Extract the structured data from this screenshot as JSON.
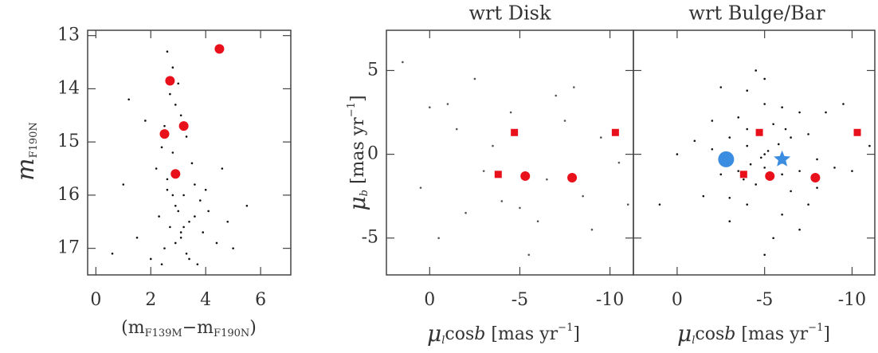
{
  "chart_data": [
    {
      "type": "scatter",
      "ylabel": [
        "m",
        "F190N"
      ],
      "xlabel": [
        "(m",
        "F139M",
        "−m",
        "F190N",
        ")"
      ],
      "xlim": [
        -0.3,
        7.1
      ],
      "ylim": [
        17.5,
        12.9
      ],
      "xticks": [
        0,
        2,
        4,
        6
      ],
      "yticks": [
        13,
        14,
        15,
        16,
        17
      ],
      "series": [
        {
          "color": "#111111",
          "marker": "dot",
          "x": [
            2.6,
            2.8,
            3.0,
            2.7,
            2.9,
            3.1,
            2.5,
            3.3,
            2.4,
            2.8,
            3.5,
            2.2,
            3.0,
            3.6,
            2.6,
            3.2,
            3.8,
            2.9,
            4.1,
            2.3,
            3.4,
            2.7,
            3.9,
            3.1,
            4.4,
            2.5,
            3.3,
            2.0,
            3.7,
            4.8,
            1.5,
            1.0,
            5.5,
            0.6,
            2.8,
            3.0,
            3.2,
            2.9,
            3.4,
            3.6,
            2.6,
            4.0,
            1.8,
            4.6,
            3.1,
            2.4,
            5.0,
            1.2
          ],
          "y": [
            13.3,
            13.6,
            13.9,
            14.1,
            14.3,
            14.5,
            14.7,
            14.9,
            15.1,
            15.2,
            15.4,
            15.5,
            15.6,
            15.8,
            15.9,
            16.0,
            16.1,
            16.2,
            16.3,
            16.4,
            16.5,
            16.6,
            16.7,
            16.8,
            16.9,
            17.0,
            17.1,
            17.2,
            17.3,
            16.5,
            16.8,
            15.8,
            16.2,
            17.1,
            16.0,
            16.3,
            16.6,
            16.9,
            17.2,
            16.4,
            15.7,
            15.9,
            14.6,
            15.5,
            16.7,
            17.3,
            17.0,
            14.2
          ]
        },
        {
          "color": "#e8101a",
          "marker": "circle",
          "x": [
            4.5,
            2.7,
            3.2,
            2.5,
            2.9
          ],
          "y": [
            13.25,
            13.85,
            14.7,
            14.85,
            15.6
          ]
        }
      ]
    },
    {
      "type": "scatter",
      "title": "wrt Disk",
      "ylabel": [
        "μ",
        "b",
        " [mas yr",
        "−1",
        "]"
      ],
      "xlabel": [
        "μ",
        "l",
        "cos",
        "b",
        " [mas yr",
        "−1",
        "]"
      ],
      "xlim": [
        2.4,
        -11.3
      ],
      "ylim": [
        -7.2,
        7.4
      ],
      "xticks": [
        0,
        -5,
        -10
      ],
      "yticks": [
        -5,
        0,
        5
      ],
      "series": [
        {
          "color": "#555555",
          "marker": "dot",
          "x": [
            1.5,
            0.5,
            -1,
            -2,
            -3,
            -4.5,
            -6,
            -7,
            -8.5,
            -9.5,
            -10.5,
            -0.5,
            -2.5,
            -5.5,
            -7.5,
            -3.5,
            -6.5,
            -1.5,
            -9,
            -4,
            -8,
            0,
            -5,
            -11
          ],
          "y": [
            5.5,
            -2,
            3,
            -3.5,
            -1,
            2.5,
            -4,
            3.5,
            -2.5,
            1,
            -0.5,
            -5,
            4.5,
            -6,
            2,
            0.5,
            -1.5,
            1.5,
            -4.5,
            -2.8,
            4,
            2.8,
            -3.2,
            -3
          ]
        },
        {
          "color": "#e8101a",
          "marker": "square",
          "x": [
            -3.8,
            -4.7,
            -10.3
          ],
          "y": [
            -1.2,
            1.3,
            1.3
          ]
        },
        {
          "color": "#e8101a",
          "marker": "circle",
          "x": [
            -5.3,
            -7.9
          ],
          "y": [
            -1.3,
            -1.4
          ]
        }
      ]
    },
    {
      "type": "scatter",
      "title": "wrt Bulge/Bar",
      "xlabel": [
        "μ",
        "l",
        "cos",
        "b",
        " [mas yr",
        "−1",
        "]"
      ],
      "xlim": [
        2.5,
        -11.3
      ],
      "ylim": [
        -7.2,
        7.4
      ],
      "xticks": [
        0,
        -5,
        -10
      ],
      "yticks": [
        -5,
        0,
        5
      ],
      "ytick_labels": false,
      "series": [
        {
          "color": "#111111",
          "marker": "dot",
          "x": [
            -5,
            -4,
            -6,
            -3,
            -7,
            -2,
            -8,
            -5.5,
            -4.5,
            -3.5,
            -6.5,
            -2.5,
            -7.5,
            -1,
            -9,
            -5,
            -4,
            -6,
            -3,
            -7,
            -5.2,
            -4.8,
            -5.8,
            -4.2,
            -6.2,
            -3.8,
            -1.5,
            -8.5,
            0,
            -10,
            -5,
            -3,
            -7,
            -4,
            -6,
            -2,
            -8,
            -5.5,
            -4.5,
            -6.5,
            -3.5,
            -9.5,
            1,
            -11,
            -5,
            -2.5,
            -7.5,
            -4,
            -6,
            -5
          ],
          "y": [
            0,
            0.5,
            -0.5,
            1,
            -1,
            0.3,
            -0.3,
            1.8,
            -1.8,
            2.2,
            -2.2,
            -1.2,
            1.2,
            0.8,
            -0.8,
            3,
            -3,
            2.8,
            -2.6,
            2.5,
            0.2,
            -0.2,
            0.6,
            -0.6,
            1.5,
            -1.5,
            -2.5,
            2.5,
            0,
            -1,
            4.5,
            -4,
            -4.5,
            3.8,
            -3.6,
            2,
            -2,
            -5,
            5,
            1,
            -1,
            3,
            -3,
            0.5,
            -6,
            4,
            -3,
            1.5,
            -1.2,
            -0.8
          ]
        },
        {
          "color": "#e8101a",
          "marker": "square",
          "x": [
            -3.8,
            -4.7,
            -10.3
          ],
          "y": [
            -1.2,
            1.3,
            1.3
          ]
        },
        {
          "color": "#e8101a",
          "marker": "circle",
          "x": [
            -5.3,
            -7.9
          ],
          "y": [
            -1.3,
            -1.4
          ]
        },
        {
          "color": "#3a8de0",
          "marker": "bigcircle",
          "x": [
            -2.8
          ],
          "y": [
            -0.3
          ]
        },
        {
          "color": "#3a8de0",
          "marker": "star",
          "x": [
            -6.0
          ],
          "y": [
            -0.3
          ]
        }
      ]
    }
  ]
}
